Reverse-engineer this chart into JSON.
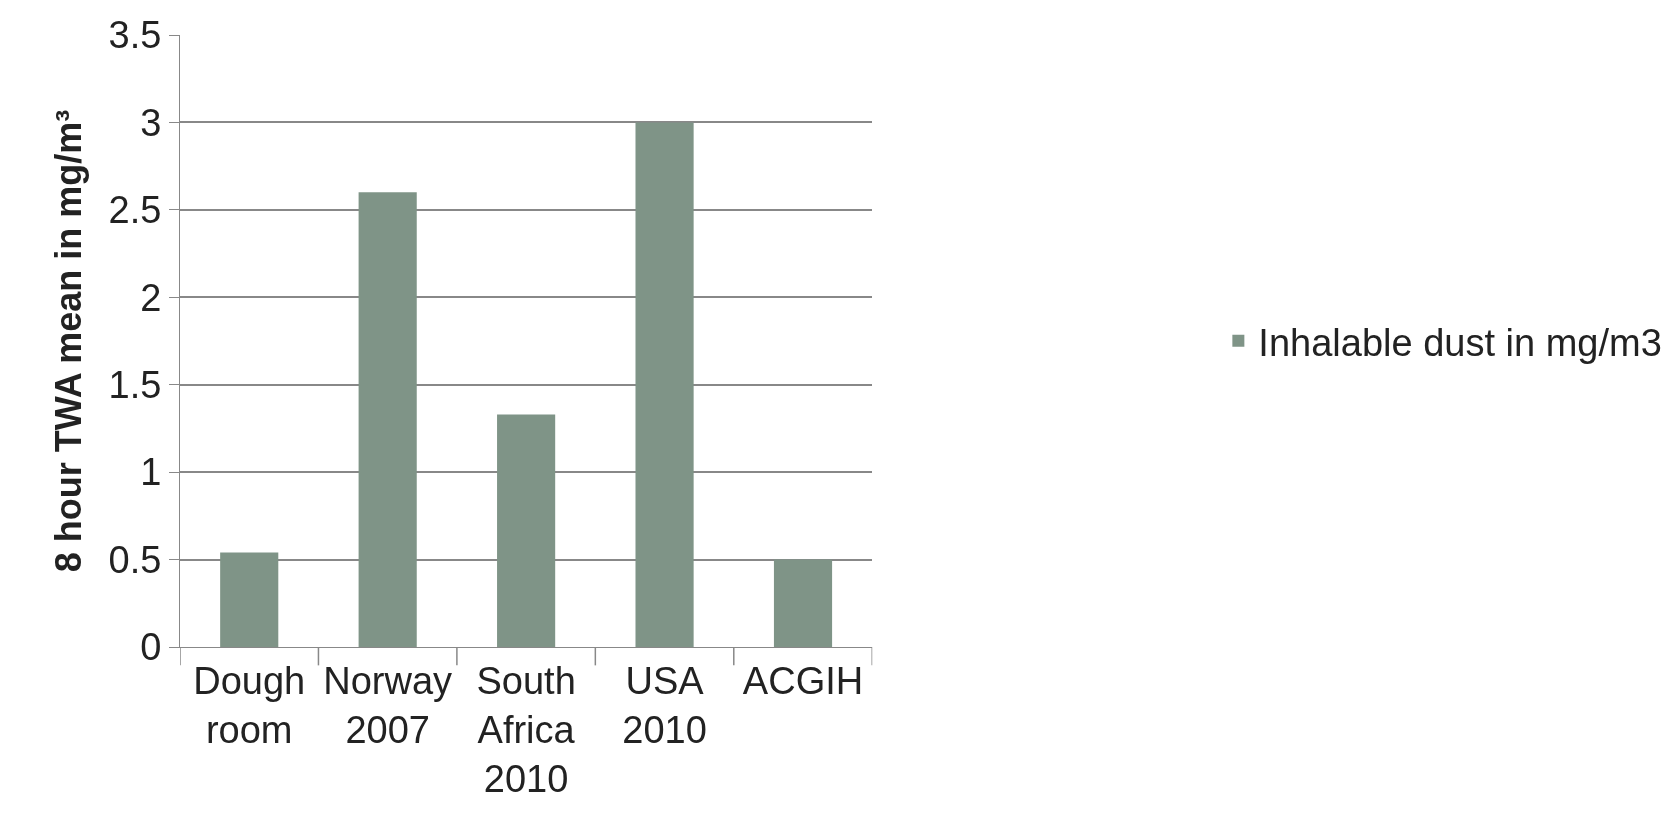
{
  "chart_data": {
    "type": "bar",
    "ylabel": "8 hour TWA mean in mg/m³",
    "categories": [
      "Dough room",
      "Norway 2007",
      "South Africa 2010",
      "USA 2010",
      "ACGIH"
    ],
    "series": [
      {
        "name": "Inhalable dust in mg/m3",
        "color": "#7f9487",
        "values": [
          0.54,
          2.6,
          1.33,
          3.0,
          0.5
        ]
      }
    ],
    "ylim": [
      0,
      3.5
    ],
    "yticks": [
      0,
      0.5,
      1,
      1.5,
      2,
      2.5,
      3,
      3.5
    ],
    "grid": "y",
    "legend": "right"
  }
}
